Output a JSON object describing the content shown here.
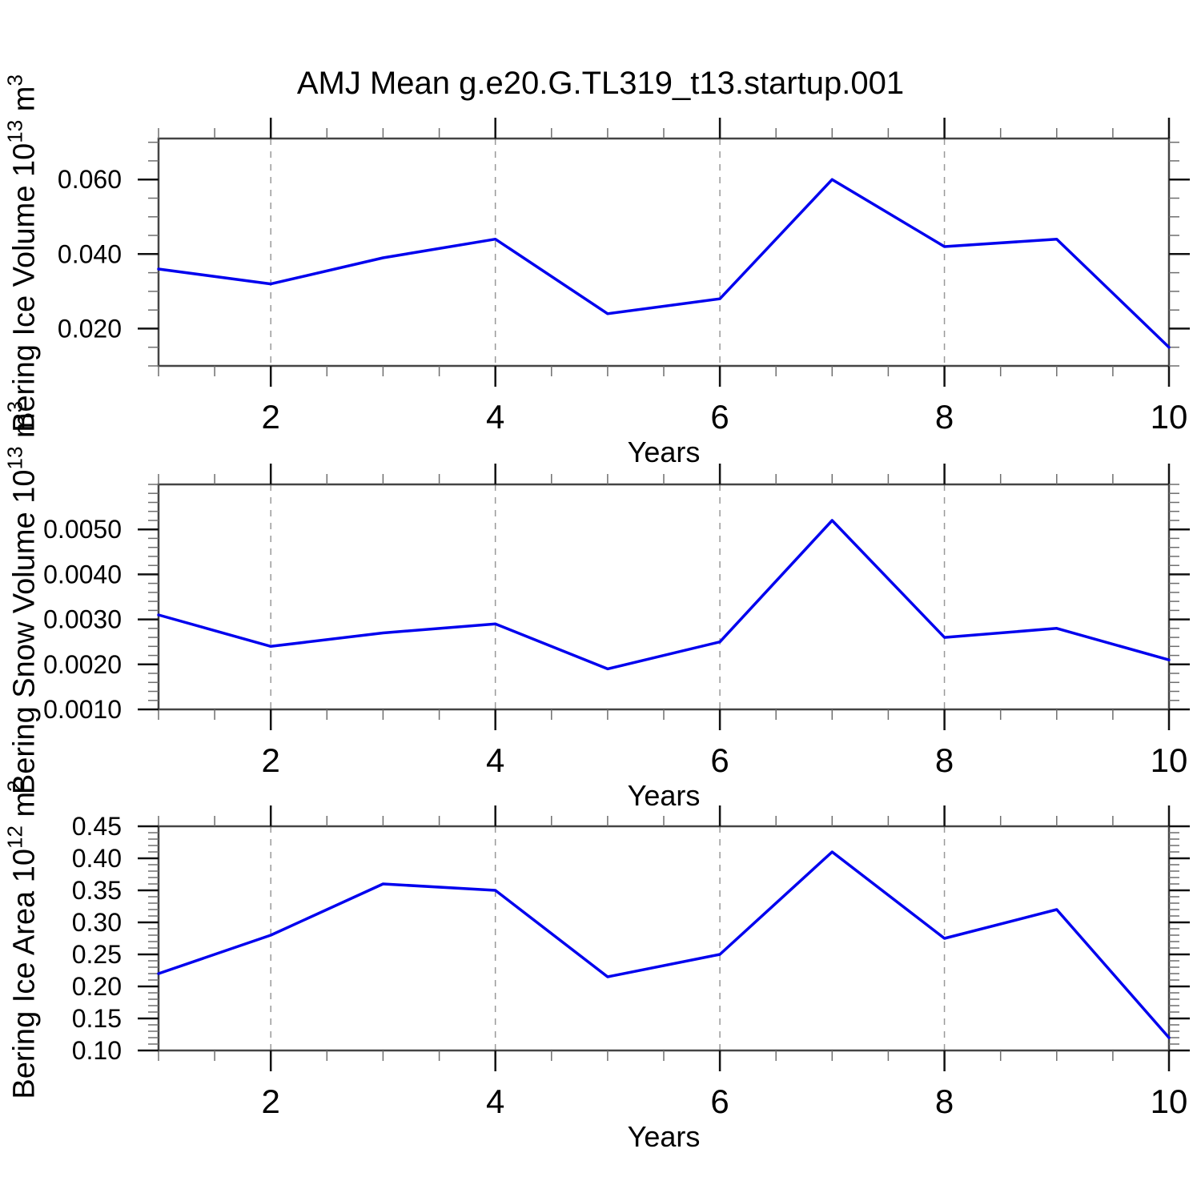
{
  "title": "AMJ Mean g.e20.G.TL319_t13.startup.001",
  "colors": {
    "line": "#0000ee",
    "grid": "#999999",
    "axis": "#444444",
    "tick_major": "#111111",
    "tick_minor": "#6e6e6e",
    "text": "#000000"
  },
  "chart_data": [
    {
      "type": "line",
      "name": "bering-ice-volume",
      "ylabel": {
        "prefix": "Bering Ice Volume 10",
        "exp": "13",
        "unit": " m",
        "unit_exp": "3"
      },
      "xlabel": "Years",
      "x": [
        1,
        2,
        3,
        4,
        5,
        6,
        7,
        8,
        9,
        10
      ],
      "values": [
        0.036,
        0.032,
        0.039,
        0.044,
        0.024,
        0.028,
        0.06,
        0.042,
        0.044,
        0.015
      ],
      "xlim": [
        1,
        10
      ],
      "ylim": [
        0.01,
        0.071
      ],
      "x_ticks": {
        "values": [
          2,
          4,
          6,
          8,
          10
        ],
        "labels": [
          "2",
          "4",
          "6",
          "8",
          "10"
        ]
      },
      "x_minor_step": 0.5,
      "y_ticks": {
        "values": [
          0.02,
          0.04,
          0.06
        ],
        "labels": [
          "0.020",
          "0.040",
          "0.060"
        ]
      },
      "y_minor_step": 0.005,
      "gridlines_x": [
        2,
        4,
        6,
        8
      ],
      "grid": "vertical-dashed",
      "legend": "none"
    },
    {
      "type": "line",
      "name": "bering-snow-volume",
      "ylabel": {
        "prefix": "Bering Snow Volume 10",
        "exp": "13",
        "unit": " m",
        "unit_exp": "3"
      },
      "xlabel": "Years",
      "x": [
        1,
        2,
        3,
        4,
        5,
        6,
        7,
        8,
        9,
        10
      ],
      "values": [
        0.0031,
        0.0024,
        0.0027,
        0.0029,
        0.0019,
        0.0025,
        0.0052,
        0.0026,
        0.0028,
        0.0021
      ],
      "xlim": [
        1,
        10
      ],
      "ylim": [
        0.001,
        0.006
      ],
      "x_ticks": {
        "values": [
          2,
          4,
          6,
          8,
          10
        ],
        "labels": [
          "2",
          "4",
          "6",
          "8",
          "10"
        ]
      },
      "x_minor_step": 0.5,
      "y_ticks": {
        "values": [
          0.001,
          0.002,
          0.003,
          0.004,
          0.005
        ],
        "labels": [
          "0.0010",
          "0.0020",
          "0.0030",
          "0.0040",
          "0.0050"
        ]
      },
      "y_minor_step": 0.0002,
      "gridlines_x": [
        2,
        4,
        6,
        8
      ],
      "grid": "vertical-dashed",
      "legend": "none"
    },
    {
      "type": "line",
      "name": "bering-ice-area",
      "ylabel": {
        "prefix": "Bering Ice Area 10",
        "exp": "12",
        "unit": " m",
        "unit_exp": "2"
      },
      "xlabel": "Years",
      "x": [
        1,
        2,
        3,
        4,
        5,
        6,
        7,
        8,
        9,
        10
      ],
      "values": [
        0.22,
        0.28,
        0.36,
        0.35,
        0.215,
        0.25,
        0.41,
        0.275,
        0.32,
        0.12
      ],
      "xlim": [
        1,
        10
      ],
      "ylim": [
        0.1,
        0.45
      ],
      "x_ticks": {
        "values": [
          2,
          4,
          6,
          8,
          10
        ],
        "labels": [
          "2",
          "4",
          "6",
          "8",
          "10"
        ]
      },
      "x_minor_step": 0.5,
      "y_ticks": {
        "values": [
          0.1,
          0.15,
          0.2,
          0.25,
          0.3,
          0.35,
          0.4,
          0.45
        ],
        "labels": [
          "0.10",
          "0.15",
          "0.20",
          "0.25",
          "0.30",
          "0.35",
          "0.40",
          "0.45"
        ]
      },
      "y_minor_step": 0.01,
      "gridlines_x": [
        2,
        4,
        6,
        8
      ],
      "grid": "vertical-dashed",
      "legend": "none"
    }
  ]
}
